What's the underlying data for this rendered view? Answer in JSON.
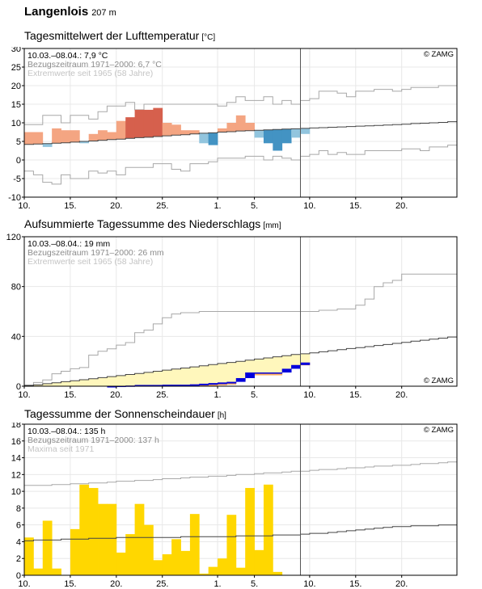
{
  "station": {
    "name": "Langenlois",
    "altitude": "207 m"
  },
  "x_tick_labels": [
    "10.",
    "15.",
    "20.",
    "25.",
    "1.",
    "5.",
    "10.",
    "15.",
    "20."
  ],
  "credit": "© ZAMG",
  "chart_data": [
    {
      "type": "bar",
      "title": "Tagesmittelwert der Lufttemperatur",
      "unit": "[°C]",
      "ylim": [
        -10,
        30
      ],
      "y_ticks": [
        -10,
        -5,
        0,
        5,
        10,
        15,
        20,
        25,
        30
      ],
      "info_lines": [
        "10.03.–08.04.: 7,9 °C",
        "Bezugszeitraum 1971–2000: 6,7 °C",
        "Extremwerte seit 1965 (58 Jahre)"
      ],
      "observed": [
        7.5,
        7.5,
        3.5,
        8.5,
        8.0,
        8.0,
        4.5,
        7.0,
        8.0,
        7.5,
        10.5,
        11.5,
        13.5,
        13.5,
        14.0,
        10.0,
        9.5,
        8.0,
        8.0,
        4.5,
        4.0,
        8.5,
        10.0,
        12.0,
        10.0,
        6.0,
        4.5,
        2.5,
        4.5,
        6.0,
        7.0
      ],
      "normal": [
        4.2,
        4.3,
        4.4,
        4.5,
        4.6,
        4.8,
        5.0,
        5.1,
        5.3,
        5.5,
        5.6,
        5.8,
        6.0,
        6.1,
        6.3,
        6.5,
        6.7,
        6.8,
        7.0,
        7.2,
        7.3,
        7.5,
        7.6,
        7.8,
        7.9,
        8.0,
        8.1,
        8.2,
        8.3,
        8.4,
        8.5,
        8.6,
        8.7,
        8.8,
        8.9,
        9.0,
        9.1,
        9.2,
        9.3,
        9.4,
        9.5,
        9.6,
        9.8,
        9.9,
        10.0,
        10.1,
        10.3
      ],
      "extreme_max": [
        9.5,
        9.5,
        12.0,
        12.0,
        10.0,
        12.0,
        12.0,
        11.0,
        13.0,
        14.5,
        14.5,
        15.5,
        13.5,
        15.0,
        15.0,
        15.0,
        15.0,
        15.0,
        15.0,
        15.0,
        15.0,
        14.5,
        15.5,
        17.0,
        16.0,
        16.0,
        17.0,
        15.0,
        16.0,
        15.0,
        16.0,
        16.5,
        18.5,
        18.5,
        18.0,
        17.0,
        18.5,
        18.5,
        19.0,
        19.0,
        18.5,
        19.0,
        19.5,
        19.5,
        19.5,
        20.0,
        20.0
      ],
      "extreme_min": [
        -3.0,
        -4.0,
        -6.0,
        -6.5,
        -4.0,
        -5.0,
        -5.0,
        -3.0,
        -3.5,
        -3.0,
        -4.0,
        -2.0,
        -2.0,
        -2.0,
        -1.0,
        -1.0,
        -2.5,
        -3.0,
        -1.0,
        -1.0,
        -0.5,
        0.5,
        0.5,
        0.5,
        1.0,
        1.0,
        0.0,
        1.0,
        0.5,
        0.0,
        1.0,
        1.5,
        2.5,
        1.5,
        2.0,
        1.5,
        1.5,
        2.5,
        2.5,
        2.5,
        2.5,
        3.0,
        3.0,
        2.5,
        3.5,
        3.5,
        4.0
      ]
    },
    {
      "type": "area",
      "title": "Aufsummierte Tagessumme des Niederschlags",
      "unit": "[mm]",
      "ylim": [
        0,
        120
      ],
      "y_ticks": [
        0,
        40,
        80,
        120
      ],
      "info_lines": [
        "10.03.–08.04.: 19 mm",
        "Bezugszeitraum 1971–2000: 26 mm",
        "Extremwerte seit 1965 (58 Jahre)"
      ],
      "observed_cumulative": [
        0,
        0,
        0,
        0,
        0,
        0,
        0,
        0,
        0,
        0.3,
        0.3,
        0.5,
        1.0,
        1.0,
        1.0,
        1.2,
        1.2,
        1.2,
        1.5,
        2.0,
        2.5,
        3.0,
        3.5,
        6.5,
        11.0,
        11.0,
        11.0,
        11.0,
        14.0,
        17.0,
        19.0
      ],
      "normal_cumulative": [
        0.5,
        1.2,
        2.0,
        2.8,
        3.6,
        4.4,
        5.2,
        6.0,
        6.9,
        7.7,
        8.5,
        9.4,
        10.2,
        11.1,
        12.0,
        12.9,
        13.8,
        14.6,
        15.5,
        16.4,
        17.3,
        18.2,
        19.1,
        20.0,
        20.9,
        21.8,
        22.7,
        23.6,
        24.5,
        25.4,
        26.0,
        26.8,
        27.6,
        28.5,
        29.3,
        30.2,
        31.0,
        31.8,
        32.7,
        33.5,
        34.4,
        35.2,
        36.1,
        36.9,
        37.8,
        38.6,
        39.5
      ],
      "extreme_max_cumulative": [
        1,
        3,
        5,
        10,
        12,
        14,
        15,
        25,
        28,
        30,
        33,
        35,
        43,
        45,
        50,
        55,
        58,
        59,
        59,
        60,
        60,
        60,
        60,
        60,
        60,
        60,
        60,
        60,
        60,
        60,
        60,
        60,
        61,
        61,
        62,
        62,
        65,
        70,
        80,
        83,
        85,
        90,
        90,
        90,
        90,
        90,
        90
      ],
      "extreme_min_cumulative": [
        0,
        0,
        0,
        0,
        0,
        0,
        0,
        0,
        0,
        0,
        0,
        0,
        0,
        0,
        0,
        0,
        0,
        0,
        0,
        0,
        0,
        0,
        0,
        0,
        0,
        0,
        0,
        0,
        0,
        0,
        0,
        0,
        0,
        0,
        0,
        0,
        0,
        0,
        0,
        0,
        0,
        0,
        0,
        0,
        0,
        0,
        0
      ]
    },
    {
      "type": "bar",
      "title": "Tagessumme der Sonnenscheindauer",
      "unit": "[h]",
      "ylim": [
        0,
        18
      ],
      "y_ticks": [
        0,
        2,
        4,
        6,
        8,
        10,
        12,
        14,
        16,
        18
      ],
      "info_lines": [
        "10.03.–08.04.: 135 h",
        "Bezugszeitraum 1971–2000: 137 h",
        "Maxima seit 1971"
      ],
      "observed": [
        4.5,
        0.8,
        6.5,
        0.8,
        0.0,
        5.5,
        10.8,
        10.4,
        8.5,
        8.5,
        2.7,
        4.9,
        8.5,
        6.0,
        1.8,
        2.5,
        4.3,
        2.9,
        7.3,
        0.2,
        1.0,
        2.0,
        7.2,
        0.9,
        10.4,
        3.0,
        10.8,
        0.4
      ],
      "normal": [
        4.1,
        4.2,
        4.2,
        4.2,
        4.3,
        4.3,
        4.3,
        4.4,
        4.4,
        4.4,
        4.5,
        4.5,
        4.5,
        4.5,
        4.5,
        4.5,
        4.5,
        4.6,
        4.6,
        4.6,
        4.6,
        4.6,
        4.6,
        4.7,
        4.7,
        4.7,
        4.7,
        4.8,
        4.8,
        4.8,
        4.9,
        5.0,
        5.0,
        5.1,
        5.2,
        5.3,
        5.4,
        5.5,
        5.6,
        5.7,
        5.8,
        5.8,
        5.9,
        5.9,
        5.9,
        6.0,
        6.0
      ],
      "maximum": [
        10.7,
        10.7,
        10.7,
        10.8,
        10.8,
        10.9,
        10.9,
        11.0,
        11.0,
        11.1,
        11.2,
        11.2,
        11.3,
        11.3,
        11.4,
        11.5,
        11.5,
        11.6,
        11.7,
        11.7,
        11.8,
        11.8,
        11.9,
        12.0,
        12.0,
        12.1,
        12.2,
        12.2,
        12.3,
        12.4,
        12.4,
        12.5,
        12.6,
        12.6,
        12.7,
        12.8,
        12.8,
        12.9,
        13.0,
        13.0,
        13.1,
        13.1,
        13.2,
        13.3,
        13.3,
        13.4,
        13.5
      ]
    }
  ]
}
